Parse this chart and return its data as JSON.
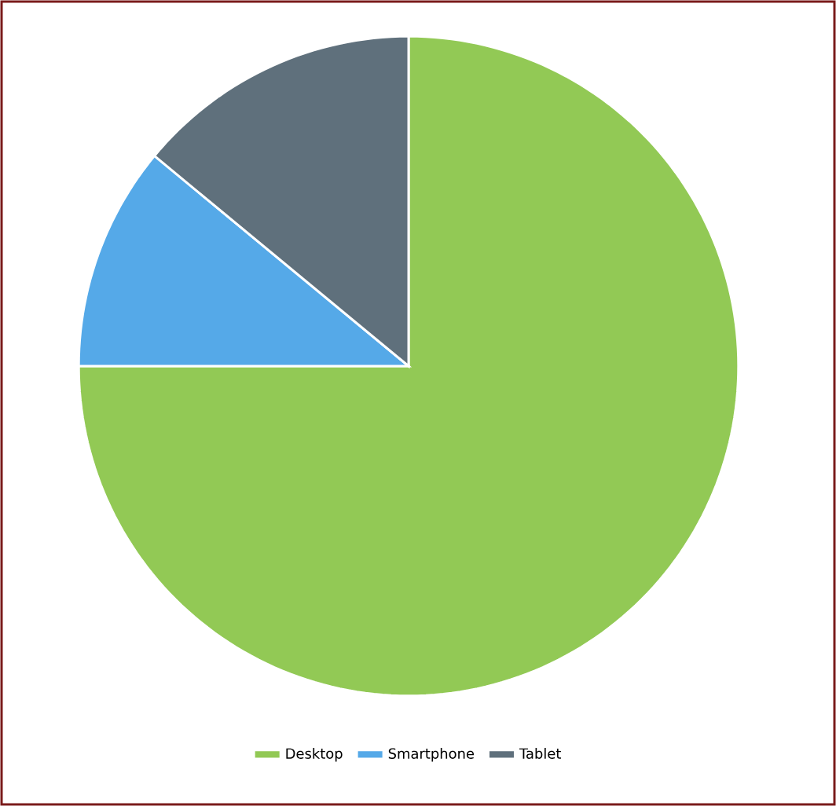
{
  "chart_data": {
    "type": "pie",
    "categories": [
      "Desktop",
      "Smartphone",
      "Tablet"
    ],
    "values": [
      75,
      11,
      14
    ],
    "colors": [
      "#92c955",
      "#55a9e8",
      "#5f707c"
    ],
    "legend": "bottom"
  }
}
